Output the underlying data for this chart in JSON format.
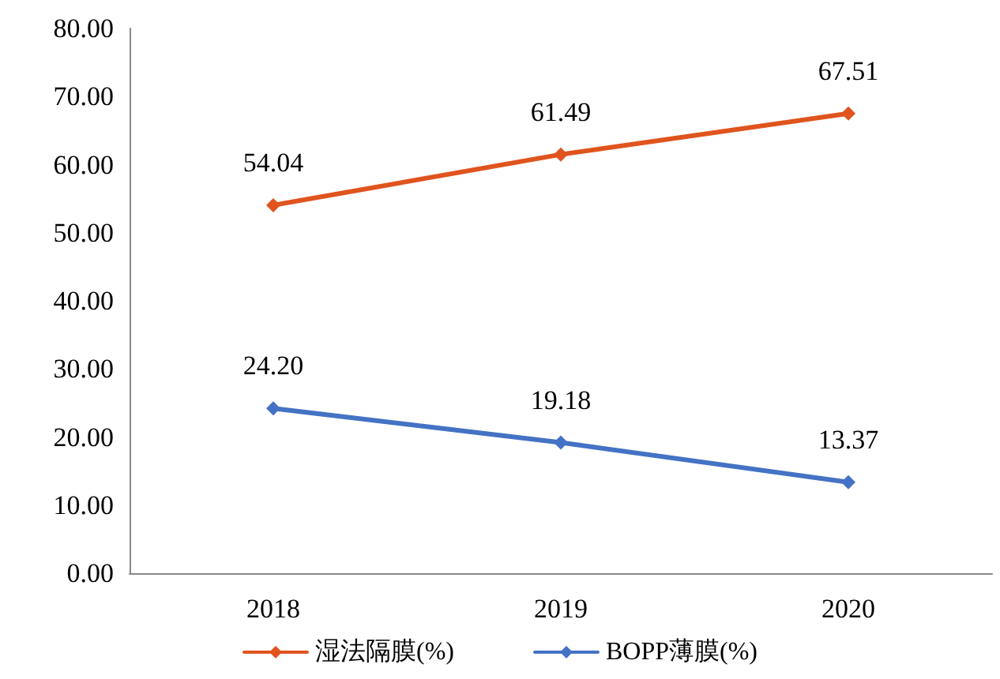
{
  "chart_data": {
    "type": "line",
    "categories": [
      "2018",
      "2019",
      "2020"
    ],
    "series": [
      {
        "name": "湿法隔膜(%)",
        "color": "#e0541e",
        "values": [
          54.04,
          61.49,
          67.51
        ],
        "value_labels": [
          "54.04",
          "61.49",
          "67.51"
        ]
      },
      {
        "name": "BOPP薄膜(%)",
        "color": "#4472c4",
        "values": [
          24.2,
          19.18,
          13.37
        ],
        "value_labels": [
          "24.20",
          "19.18",
          "13.37"
        ]
      }
    ],
    "ylim": [
      0,
      80
    ],
    "yticks": [
      {
        "value": 0,
        "label": "0.00"
      },
      {
        "value": 10,
        "label": "10.00"
      },
      {
        "value": 20,
        "label": "20.00"
      },
      {
        "value": 30,
        "label": "30.00"
      },
      {
        "value": 40,
        "label": "40.00"
      },
      {
        "value": 50,
        "label": "50.00"
      },
      {
        "value": 60,
        "label": "60.00"
      },
      {
        "value": 70,
        "label": "70.00"
      },
      {
        "value": 80,
        "label": "80.00"
      }
    ],
    "grid": false,
    "legend": "bottom",
    "marker": "diamond",
    "line_style": "solid"
  }
}
